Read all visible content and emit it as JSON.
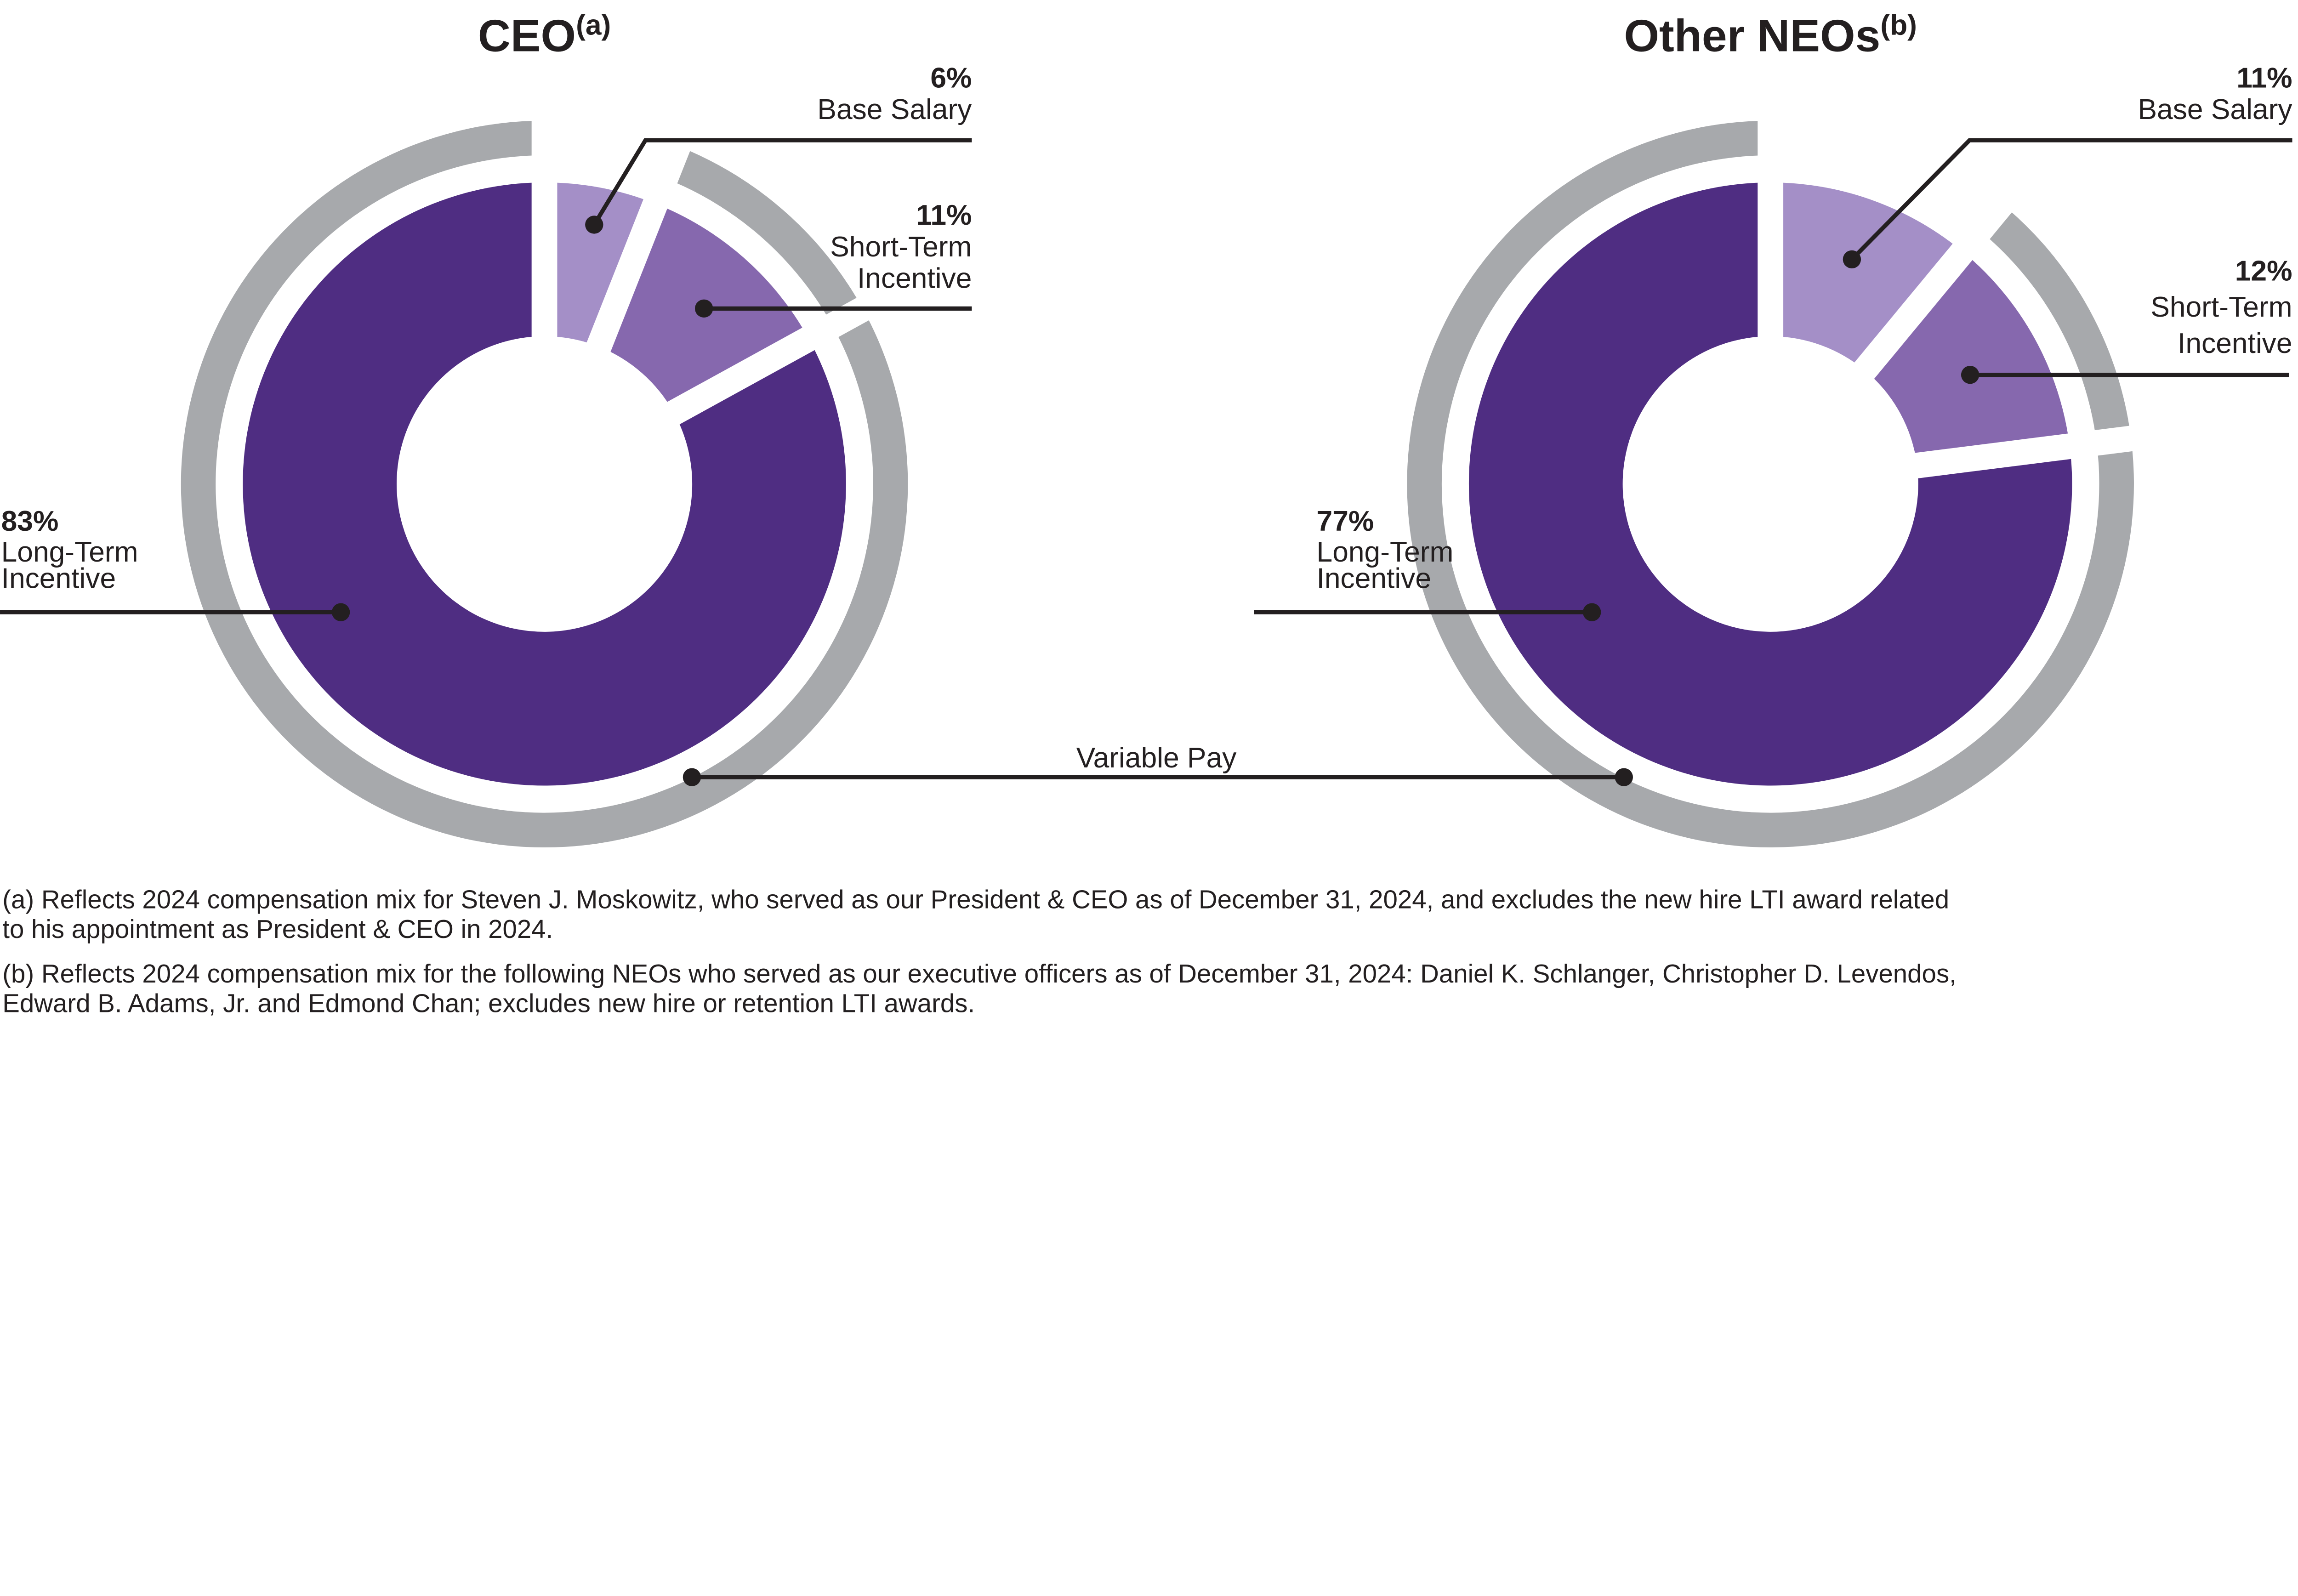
{
  "charts": [
    {
      "title": "CEO",
      "title_sup": "(a)",
      "segments": [
        {
          "name": "Base Salary",
          "value": 6,
          "pct_label": "6%",
          "label_lines": [
            "Base Salary"
          ],
          "color": "#A48FC7"
        },
        {
          "name": "Short-Term Incentive",
          "value": 11,
          "pct_label": "11%",
          "label_lines": [
            "Short-Term",
            "Incentive"
          ],
          "color": "#8668AE"
        },
        {
          "name": "Long-Term Incentive",
          "value": 83,
          "pct_label": "83%",
          "label_lines": [
            "Long-Term",
            "Incentive"
          ],
          "color": "#4F2D82"
        }
      ]
    },
    {
      "title": "Other NEOs",
      "title_sup": "(b)",
      "segments": [
        {
          "name": "Base Salary",
          "value": 11,
          "pct_label": "11%",
          "label_lines": [
            "Base Salary"
          ],
          "color": "#A48FC7"
        },
        {
          "name": "Short-Term Incentive",
          "value": 12,
          "pct_label": "12%",
          "label_lines": [
            "Short-Term",
            "Incentive"
          ],
          "color": "#8668AE"
        },
        {
          "name": "Long-Term Incentive",
          "value": 77,
          "pct_label": "77%",
          "label_lines": [
            "Long-Term",
            "Incentive"
          ],
          "color": "#4F2D82"
        }
      ]
    }
  ],
  "ring": {
    "label": "Variable Pay",
    "color": "#A7A9AC"
  },
  "footnotes": [
    {
      "lines": [
        "(a) Reflects 2024 compensation mix for Steven J. Moskowitz, who served as our President & CEO as of December 31, 2024, and excludes the new hire LTI award related",
        "to his appointment as President & CEO in 2024."
      ]
    },
    {
      "lines": [
        "(b) Reflects 2024 compensation mix for the following NEOs who served as our executive officers as of December 31, 2024: Daniel K. Schlanger, Christopher D. Levendos,",
        "Edward B. Adams, Jr. and Edmond Chan; excludes new hire or retention LTI awards."
      ]
    }
  ],
  "colors": {
    "text": "#231F20",
    "background": "#FFFFFF",
    "separator": "#FFFFFF"
  },
  "chart_data": [
    {
      "type": "pie",
      "title": "CEO(a)",
      "labels": [
        "Base Salary",
        "Short-Term Incentive",
        "Long-Term Incentive"
      ],
      "values": [
        6,
        11,
        83
      ],
      "unit": "%",
      "style": "donut with outer gray arc",
      "annotations": [
        "Variable Pay arc spans Short-Term Incentive + Long-Term Incentive (94%)"
      ]
    },
    {
      "type": "pie",
      "title": "Other NEOs(b)",
      "labels": [
        "Base Salary",
        "Short-Term Incentive",
        "Long-Term Incentive"
      ],
      "values": [
        11,
        12,
        77
      ],
      "unit": "%",
      "style": "donut with outer gray arc",
      "annotations": [
        "Variable Pay arc spans Short-Term Incentive + Long-Term Incentive (89%)"
      ]
    }
  ]
}
